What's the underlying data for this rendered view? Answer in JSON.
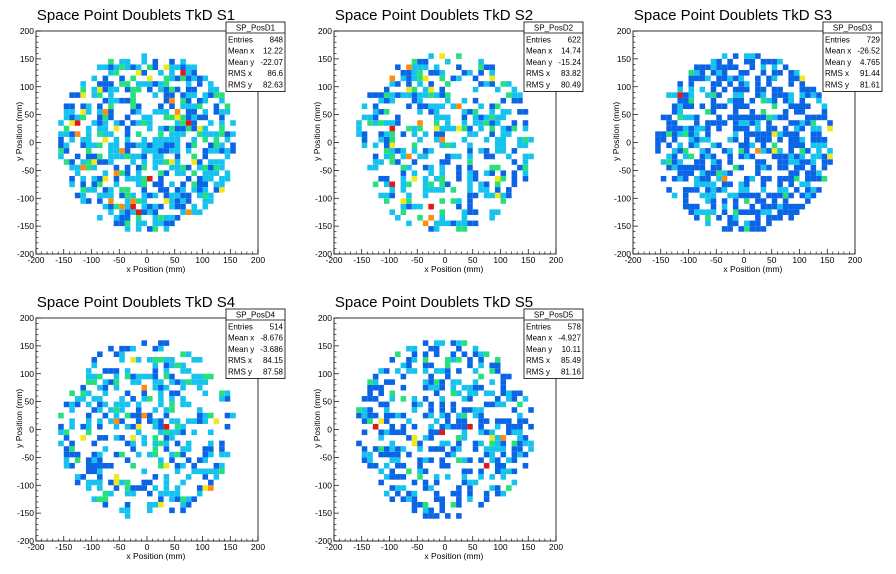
{
  "chart_data": [
    {
      "type": "heatmap",
      "title": "Space Point Doublets TkD S1",
      "xlabel": "x Position (mm)",
      "ylabel": "y Position (mm)",
      "xlim": [
        -200,
        200
      ],
      "ylim": [
        -200,
        200
      ],
      "xticks": [
        -200,
        -150,
        -100,
        -50,
        0,
        50,
        100,
        150,
        200
      ],
      "yticks": [
        -200,
        -150,
        -100,
        -50,
        0,
        50,
        100,
        150,
        200
      ],
      "disk_radius": 160,
      "bin_size": 10,
      "stats": {
        "name": "SP_PosD1",
        "rows": [
          {
            "label": "Entries",
            "value": "848"
          },
          {
            "label": "Mean x",
            "value": "12.22"
          },
          {
            "label": "Mean y",
            "value": "-22.07"
          },
          {
            "label": "RMS x",
            "value": "86.6"
          },
          {
            "label": "RMS y",
            "value": "82.63"
          }
        ]
      },
      "palette": [
        "#0a64e6",
        "#16c3ee",
        "#26e07a",
        "#f0e81a",
        "#ff8c10",
        "#e01818"
      ]
    },
    {
      "type": "heatmap",
      "title": "Space Point Doublets TkD S2",
      "xlabel": "x Position (mm)",
      "ylabel": "y Position (mm)",
      "xlim": [
        -200,
        200
      ],
      "ylim": [
        -200,
        200
      ],
      "xticks": [
        -200,
        -150,
        -100,
        -50,
        0,
        50,
        100,
        150,
        200
      ],
      "yticks": [
        -200,
        -150,
        -100,
        -50,
        0,
        50,
        100,
        150,
        200
      ],
      "disk_radius": 160,
      "bin_size": 10,
      "stats": {
        "name": "SP_PosD2",
        "rows": [
          {
            "label": "Entries",
            "value": "622"
          },
          {
            "label": "Mean x",
            "value": "14.74"
          },
          {
            "label": "Mean y",
            "value": "-15.24"
          },
          {
            "label": "RMS x",
            "value": "83.82"
          },
          {
            "label": "RMS y",
            "value": "80.49"
          }
        ]
      },
      "palette": [
        "#0a64e6",
        "#16c3ee",
        "#26e07a",
        "#f0e81a",
        "#ff8c10",
        "#e01818"
      ]
    },
    {
      "type": "heatmap",
      "title": "Space Point Doublets TkD S3",
      "xlabel": "x Position (mm)",
      "ylabel": "y Position (mm)",
      "xlim": [
        -200,
        200
      ],
      "ylim": [
        -200,
        200
      ],
      "xticks": [
        -200,
        -150,
        -100,
        -50,
        0,
        50,
        100,
        150,
        200
      ],
      "yticks": [
        -200,
        -150,
        -100,
        -50,
        0,
        50,
        100,
        150,
        200
      ],
      "disk_radius": 160,
      "bin_size": 10,
      "stats": {
        "name": "SP_PosD3",
        "rows": [
          {
            "label": "Entries",
            "value": "729"
          },
          {
            "label": "Mean x",
            "value": "-26.52"
          },
          {
            "label": "Mean y",
            "value": "4.765"
          },
          {
            "label": "RMS x",
            "value": "91.44"
          },
          {
            "label": "RMS y",
            "value": "81.61"
          }
        ]
      },
      "palette": [
        "#0a64e6",
        "#16c3ee",
        "#26e07a",
        "#f0e81a",
        "#ff8c10",
        "#e01818"
      ]
    },
    {
      "type": "heatmap",
      "title": "Space Point Doublets TkD S4",
      "xlabel": "x Position (mm)",
      "ylabel": "y Position (mm)",
      "xlim": [
        -200,
        200
      ],
      "ylim": [
        -200,
        200
      ],
      "xticks": [
        -200,
        -150,
        -100,
        -50,
        0,
        50,
        100,
        150,
        200
      ],
      "yticks": [
        -200,
        -150,
        -100,
        -50,
        0,
        50,
        100,
        150,
        200
      ],
      "disk_radius": 160,
      "bin_size": 10,
      "stats": {
        "name": "SP_PosD4",
        "rows": [
          {
            "label": "Entries",
            "value": "514"
          },
          {
            "label": "Mean x",
            "value": "-8.676"
          },
          {
            "label": "Mean y",
            "value": "-3.686"
          },
          {
            "label": "RMS x",
            "value": "84.15"
          },
          {
            "label": "RMS y",
            "value": "87.58"
          }
        ]
      },
      "palette": [
        "#0a64e6",
        "#16c3ee",
        "#26e07a",
        "#f0e81a",
        "#ff8c10",
        "#e01818"
      ]
    },
    {
      "type": "heatmap",
      "title": "Space Point Doublets TkD S5",
      "xlabel": "x Position (mm)",
      "ylabel": "y Position (mm)",
      "xlim": [
        -200,
        200
      ],
      "ylim": [
        -200,
        200
      ],
      "xticks": [
        -200,
        -150,
        -100,
        -50,
        0,
        50,
        100,
        150,
        200
      ],
      "yticks": [
        -200,
        -150,
        -100,
        -50,
        0,
        50,
        100,
        150,
        200
      ],
      "disk_radius": 160,
      "bin_size": 10,
      "stats": {
        "name": "SP_PosD5",
        "rows": [
          {
            "label": "Entries",
            "value": "578"
          },
          {
            "label": "Mean x",
            "value": "-4.927"
          },
          {
            "label": "Mean y",
            "value": "10.11"
          },
          {
            "label": "RMS x",
            "value": "85.49"
          },
          {
            "label": "RMS y",
            "value": "81.16"
          }
        ]
      },
      "palette": [
        "#0a64e6",
        "#16c3ee",
        "#26e07a",
        "#f0e81a",
        "#ff8c10",
        "#e01818"
      ]
    }
  ]
}
